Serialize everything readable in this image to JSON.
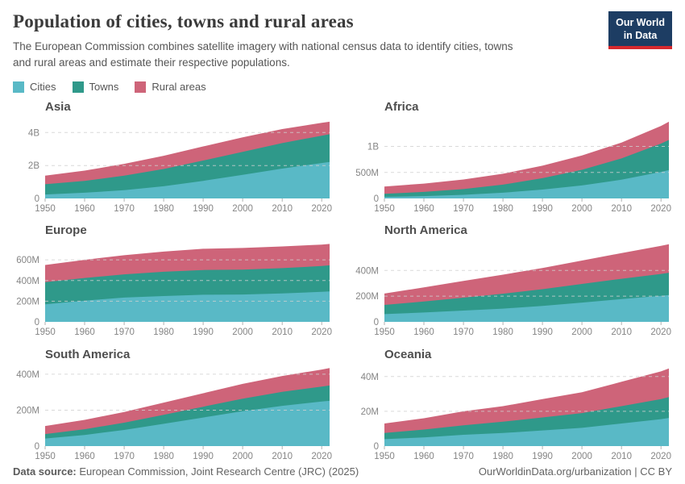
{
  "header": {
    "title": "Population of cities, towns and rural areas",
    "subtitle": "The European Commission combines satellite imagery with national census data to identify cities, towns and rural areas and estimate their respective populations.",
    "logo": {
      "line1": "Our World",
      "line2": "in Data"
    }
  },
  "legend": [
    {
      "label": "Cities",
      "color": "#59b9c6"
    },
    {
      "label": "Towns",
      "color": "#2f998a"
    },
    {
      "label": "Rural areas",
      "color": "#ce6479"
    }
  ],
  "colors": {
    "cities": "#59b9c6",
    "towns": "#2f998a",
    "rural_areas": "#ce6479",
    "gridline": "#cfcfcf",
    "axis_text": "#858585",
    "logo_bg": "#1d3d63",
    "logo_accent": "#d6292e"
  },
  "footer": {
    "source_label": "Data source:",
    "source_text": " European Commission, Joint Research Centre (JRC) (2025)",
    "right_text": "OurWorldinData.org/urbanization | CC BY"
  },
  "chart_data": [
    {
      "type": "area",
      "stacked": true,
      "title": "Asia",
      "unit": "millions of people",
      "x": [
        1950,
        1960,
        1970,
        1980,
        1990,
        2000,
        2010,
        2020,
        2022
      ],
      "xticks": [
        1950,
        1960,
        1970,
        1980,
        1990,
        2000,
        2010,
        2020
      ],
      "series": [
        {
          "name": "Cities",
          "values": [
            240,
            350,
            500,
            740,
            1070,
            1430,
            1810,
            2150,
            2220
          ]
        },
        {
          "name": "Towns",
          "values": [
            620,
            720,
            880,
            1050,
            1230,
            1400,
            1550,
            1660,
            1680
          ]
        },
        {
          "name": "Rural areas",
          "values": [
            520,
            620,
            720,
            800,
            860,
            880,
            850,
            780,
            760
          ]
        }
      ],
      "ylim": [
        0,
        4800
      ],
      "yticks": [
        {
          "v": 0,
          "label": "0"
        },
        {
          "v": 2000,
          "label": "2B"
        },
        {
          "v": 4000,
          "label": "4B"
        }
      ],
      "grid": true,
      "legend_position": "top-shared"
    },
    {
      "type": "area",
      "stacked": true,
      "title": "Africa",
      "unit": "millions of people",
      "x": [
        1950,
        1960,
        1970,
        1980,
        1990,
        2000,
        2010,
        2020,
        2022
      ],
      "xticks": [
        1950,
        1960,
        1970,
        1980,
        1990,
        2000,
        2010,
        2020
      ],
      "series": [
        {
          "name": "Cities",
          "values": [
            30,
            45,
            70,
            110,
            170,
            250,
            360,
            510,
            545
          ]
        },
        {
          "name": "Towns",
          "values": [
            60,
            80,
            110,
            155,
            220,
            300,
            410,
            545,
            580
          ]
        },
        {
          "name": "Rural areas",
          "values": [
            140,
            160,
            185,
            210,
            240,
            275,
            305,
            340,
            350
          ]
        }
      ],
      "ylim": [
        0,
        1520
      ],
      "yticks": [
        {
          "v": 0,
          "label": "0"
        },
        {
          "v": 500,
          "label": "500M"
        },
        {
          "v": 1000,
          "label": "1B"
        }
      ],
      "grid": true,
      "legend_position": "top-shared"
    },
    {
      "type": "area",
      "stacked": true,
      "title": "Europe",
      "unit": "millions of people",
      "x": [
        1950,
        1960,
        1970,
        1980,
        1990,
        2000,
        2010,
        2020,
        2022
      ],
      "xticks": [
        1950,
        1960,
        1970,
        1980,
        1990,
        2000,
        2010,
        2020
      ],
      "series": [
        {
          "name": "Cities",
          "values": [
            170,
            205,
            235,
            250,
            262,
            265,
            275,
            290,
            295
          ]
        },
        {
          "name": "Towns",
          "values": [
            215,
            220,
            225,
            235,
            240,
            240,
            245,
            250,
            252
          ]
        },
        {
          "name": "Rural areas",
          "values": [
            165,
            175,
            185,
            195,
            205,
            210,
            210,
            208,
            207
          ]
        }
      ],
      "ylim": [
        0,
        765
      ],
      "yticks": [
        {
          "v": 0,
          "label": "0"
        },
        {
          "v": 200,
          "label": "200M"
        },
        {
          "v": 400,
          "label": "400M"
        },
        {
          "v": 600,
          "label": "600M"
        }
      ],
      "grid": true,
      "legend_position": "top-shared"
    },
    {
      "type": "area",
      "stacked": true,
      "title": "North America",
      "unit": "millions of people",
      "x": [
        1950,
        1960,
        1970,
        1980,
        1990,
        2000,
        2010,
        2020,
        2022
      ],
      "xticks": [
        1950,
        1960,
        1970,
        1980,
        1990,
        2000,
        2010,
        2020
      ],
      "series": [
        {
          "name": "Cities",
          "values": [
            60,
            73,
            88,
            103,
            124,
            150,
            177,
            203,
            209
          ]
        },
        {
          "name": "Towns",
          "values": [
            72,
            85,
            100,
            116,
            130,
            145,
            158,
            170,
            173
          ]
        },
        {
          "name": "Rural areas",
          "values": [
            88,
            110,
            130,
            148,
            165,
            182,
            200,
            218,
            222
          ]
        }
      ],
      "ylim": [
        0,
        615
      ],
      "yticks": [
        {
          "v": 0,
          "label": "0"
        },
        {
          "v": 200,
          "label": "200M"
        },
        {
          "v": 400,
          "label": "400M"
        }
      ],
      "grid": true,
      "legend_position": "top-shared"
    },
    {
      "type": "area",
      "stacked": true,
      "title": "South America",
      "unit": "millions of people",
      "x": [
        1950,
        1960,
        1970,
        1980,
        1990,
        2000,
        2010,
        2020,
        2022
      ],
      "xticks": [
        1950,
        1960,
        1970,
        1980,
        1990,
        2000,
        2010,
        2020
      ],
      "series": [
        {
          "name": "Cities",
          "values": [
            42,
            62,
            90,
            124,
            159,
            194,
            224,
            248,
            252
          ]
        },
        {
          "name": "Towns",
          "values": [
            25,
            32,
            40,
            50,
            60,
            70,
            78,
            83,
            85
          ]
        },
        {
          "name": "Rural areas",
          "values": [
            45,
            52,
            60,
            68,
            75,
            82,
            88,
            95,
            97
          ]
        }
      ],
      "ylim": [
        0,
        440
      ],
      "yticks": [
        {
          "v": 0,
          "label": "0"
        },
        {
          "v": 200,
          "label": "200M"
        },
        {
          "v": 400,
          "label": "400M"
        }
      ],
      "grid": true,
      "legend_position": "top-shared"
    },
    {
      "type": "area",
      "stacked": true,
      "title": "Oceania",
      "unit": "millions of people",
      "x": [
        1950,
        1960,
        1970,
        1980,
        1990,
        2000,
        2010,
        2020,
        2022
      ],
      "xticks": [
        1950,
        1960,
        1970,
        1980,
        1990,
        2000,
        2010,
        2020
      ],
      "series": [
        {
          "name": "Cities",
          "values": [
            4.0,
            5.0,
            6.5,
            7.5,
            9.0,
            10.5,
            13.0,
            15.5,
            16.2
          ]
        },
        {
          "name": "Towns",
          "values": [
            3.5,
            4.5,
            5.5,
            6.5,
            7.5,
            8.5,
            10.0,
            11.5,
            12.0
          ]
        },
        {
          "name": "Rural areas",
          "values": [
            5.5,
            6.5,
            8.0,
            9.0,
            10.5,
            12.0,
            14.0,
            16.0,
            16.5
          ]
        }
      ],
      "ylim": [
        0,
        45.5
      ],
      "yticks": [
        {
          "v": 0,
          "label": "0"
        },
        {
          "v": 20,
          "label": "20M"
        },
        {
          "v": 40,
          "label": "40M"
        }
      ],
      "grid": true,
      "legend_position": "top-shared"
    }
  ]
}
